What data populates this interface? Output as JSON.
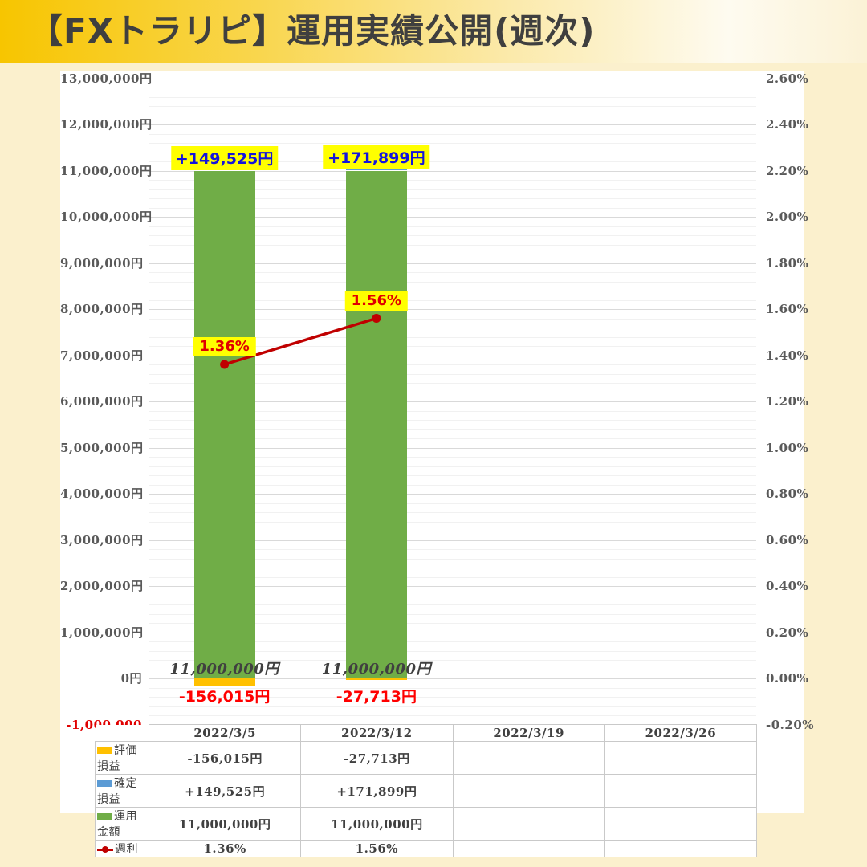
{
  "title": "【FXトラリピ】運用実績公開(週次)",
  "colors": {
    "banner_gold": "#F7C500",
    "page_bg": "#FBF0CD",
    "valuation": "#FFC000",
    "realized": "#5B9BD5",
    "amount": "#70AD47",
    "rate_line": "#C00000",
    "label_highlight": "#FFFF00",
    "realized_label_text": "#1414DC",
    "negative_label_text": "#FF0000",
    "axis_text": "#595959",
    "negative_axis_text": "#E00000"
  },
  "chart_data": {
    "type": "combo: stacked bar + line",
    "categories": [
      "2022/3/5",
      "2022/3/12",
      "2022/3/19",
      "2022/3/26"
    ],
    "series": [
      {
        "name": "評価損益",
        "chart": "bar",
        "color": "#FFC000",
        "values": [
          -156015,
          -27713,
          null,
          null
        ],
        "labels": [
          "-156,015円",
          "-27,713円",
          "",
          ""
        ]
      },
      {
        "name": "確定損益",
        "chart": "bar",
        "color": "#5B9BD5",
        "values": [
          149525,
          171899,
          null,
          null
        ],
        "labels": [
          "+149,525円",
          "+171,899円",
          "",
          ""
        ]
      },
      {
        "name": "運用金額",
        "chart": "bar",
        "color": "#70AD47",
        "values": [
          11000000,
          11000000,
          null,
          null
        ],
        "labels": [
          "11,000,000円",
          "11,000,000円",
          "",
          ""
        ]
      },
      {
        "name": "週利",
        "chart": "line",
        "color": "#C00000",
        "values": [
          1.36,
          1.56,
          null,
          null
        ],
        "labels": [
          "1.36%",
          "1.56%",
          "",
          ""
        ]
      }
    ],
    "left_axis": {
      "min": -1000000,
      "max": 13000000,
      "major": 1000000,
      "minor": 200000,
      "ticks": [
        {
          "label": "13,000,000円",
          "value": 13000000
        },
        {
          "label": "12,000,000円",
          "value": 12000000
        },
        {
          "label": "11,000,000円",
          "value": 11000000
        },
        {
          "label": "10,000,000円",
          "value": 10000000
        },
        {
          "label": "9,000,000円",
          "value": 9000000
        },
        {
          "label": "8,000,000円",
          "value": 8000000
        },
        {
          "label": "7,000,000円",
          "value": 7000000
        },
        {
          "label": "6,000,000円",
          "value": 6000000
        },
        {
          "label": "5,000,000円",
          "value": 5000000
        },
        {
          "label": "4,000,000円",
          "value": 4000000
        },
        {
          "label": "3,000,000円",
          "value": 3000000
        },
        {
          "label": "2,000,000円",
          "value": 2000000
        },
        {
          "label": "1,000,000円",
          "value": 1000000
        },
        {
          "label": "0円",
          "value": 0
        },
        {
          "label": "-1,000,000",
          "value": -1000000,
          "color": "#E00000"
        }
      ]
    },
    "right_axis": {
      "min": -0.2,
      "max": 2.6,
      "major": 0.2,
      "ticks": [
        {
          "label": "2.60%",
          "value": 2.6
        },
        {
          "label": "2.40%",
          "value": 2.4
        },
        {
          "label": "2.20%",
          "value": 2.2
        },
        {
          "label": "2.00%",
          "value": 2.0
        },
        {
          "label": "1.80%",
          "value": 1.8
        },
        {
          "label": "1.60%",
          "value": 1.6
        },
        {
          "label": "1.40%",
          "value": 1.4
        },
        {
          "label": "1.20%",
          "value": 1.2
        },
        {
          "label": "1.00%",
          "value": 1.0
        },
        {
          "label": "0.80%",
          "value": 0.8
        },
        {
          "label": "0.60%",
          "value": 0.6
        },
        {
          "label": "0.40%",
          "value": 0.4
        },
        {
          "label": "0.20%",
          "value": 0.2
        },
        {
          "label": "0.00%",
          "value": 0.0
        },
        {
          "label": "-0.20%",
          "value": -0.2
        }
      ]
    },
    "grid": true,
    "legend_position": "table-row-labels"
  },
  "table": {
    "corner": "",
    "columns": [
      "2022/3/5",
      "2022/3/12",
      "2022/3/19",
      "2022/3/26"
    ],
    "rows": [
      {
        "label": "評価損益",
        "swatch": "valuation",
        "cells": [
          "-156,015円",
          "-27,713円",
          "",
          ""
        ]
      },
      {
        "label": "確定損益",
        "swatch": "realized",
        "cells": [
          "+149,525円",
          "+171,899円",
          "",
          ""
        ]
      },
      {
        "label": "運用金額",
        "swatch": "amount",
        "cells": [
          "11,000,000円",
          "11,000,000円",
          "",
          ""
        ]
      },
      {
        "label": "週利",
        "swatch": "rate_line",
        "cells": [
          "1.36%",
          "1.56%",
          "",
          ""
        ]
      }
    ]
  }
}
